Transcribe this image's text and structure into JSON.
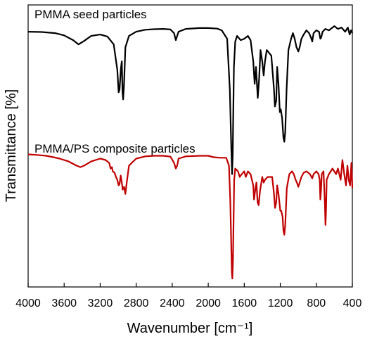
{
  "chart_data": {
    "type": "line",
    "title": "",
    "xlabel": "Wavenumber [cm⁻¹]",
    "ylabel": "Transmittance [%]",
    "xlim": [
      4000,
      400
    ],
    "x_reversed": true,
    "ylim": [
      0,
      1
    ],
    "y_ticks_shown": false,
    "grid": false,
    "legend": "none",
    "x_ticks": [
      4000,
      3600,
      3200,
      2800,
      2400,
      2000,
      1600,
      1200,
      800,
      400
    ],
    "x_tick_labels": [
      "4000",
      "3600",
      "3200",
      "2800",
      "2400",
      "2000",
      "1600",
      "1200",
      "800",
      "400"
    ],
    "series": [
      {
        "name": "PMMA seed particles",
        "color": "#000000",
        "points": [
          [
            4000,
            0.905
          ],
          [
            3850,
            0.904
          ],
          [
            3700,
            0.9
          ],
          [
            3600,
            0.892
          ],
          [
            3500,
            0.875
          ],
          [
            3440,
            0.86
          ],
          [
            3380,
            0.872
          ],
          [
            3300,
            0.89
          ],
          [
            3200,
            0.895
          ],
          [
            3120,
            0.888
          ],
          [
            3050,
            0.86
          ],
          [
            3010,
            0.77
          ],
          [
            2995,
            0.69
          ],
          [
            2985,
            0.7
          ],
          [
            2970,
            0.775
          ],
          [
            2960,
            0.8
          ],
          [
            2952,
            0.69
          ],
          [
            2945,
            0.665
          ],
          [
            2935,
            0.72
          ],
          [
            2920,
            0.85
          ],
          [
            2880,
            0.89
          ],
          [
            2800,
            0.905
          ],
          [
            2700,
            0.912
          ],
          [
            2600,
            0.914
          ],
          [
            2500,
            0.915
          ],
          [
            2420,
            0.913
          ],
          [
            2380,
            0.9
          ],
          [
            2360,
            0.875
          ],
          [
            2345,
            0.89
          ],
          [
            2330,
            0.905
          ],
          [
            2250,
            0.915
          ],
          [
            2100,
            0.918
          ],
          [
            2000,
            0.918
          ],
          [
            1900,
            0.916
          ],
          [
            1850,
            0.91
          ],
          [
            1790,
            0.88
          ],
          [
            1760,
            0.7
          ],
          [
            1745,
            0.5
          ],
          [
            1735,
            0.4
          ],
          [
            1728,
            0.47
          ],
          [
            1715,
            0.78
          ],
          [
            1700,
            0.87
          ],
          [
            1680,
            0.89
          ],
          [
            1640,
            0.875
          ],
          [
            1600,
            0.88
          ],
          [
            1560,
            0.89
          ],
          [
            1530,
            0.875
          ],
          [
            1500,
            0.8
          ],
          [
            1485,
            0.72
          ],
          [
            1470,
            0.78
          ],
          [
            1450,
            0.67
          ],
          [
            1435,
            0.74
          ],
          [
            1420,
            0.84
          ],
          [
            1400,
            0.8
          ],
          [
            1385,
            0.75
          ],
          [
            1370,
            0.8
          ],
          [
            1350,
            0.84
          ],
          [
            1300,
            0.82
          ],
          [
            1270,
            0.7
          ],
          [
            1260,
            0.64
          ],
          [
            1245,
            0.66
          ],
          [
            1235,
            0.78
          ],
          [
            1220,
            0.72
          ],
          [
            1205,
            0.62
          ],
          [
            1195,
            0.63
          ],
          [
            1180,
            0.6
          ],
          [
            1165,
            0.53
          ],
          [
            1155,
            0.515
          ],
          [
            1145,
            0.55
          ],
          [
            1130,
            0.7
          ],
          [
            1110,
            0.84
          ],
          [
            1080,
            0.88
          ],
          [
            1060,
            0.9
          ],
          [
            1040,
            0.88
          ],
          [
            1020,
            0.85
          ],
          [
            1000,
            0.835
          ],
          [
            985,
            0.85
          ],
          [
            965,
            0.88
          ],
          [
            940,
            0.895
          ],
          [
            910,
            0.91
          ],
          [
            880,
            0.9
          ],
          [
            860,
            0.885
          ],
          [
            845,
            0.87
          ],
          [
            830,
            0.9
          ],
          [
            800,
            0.91
          ],
          [
            770,
            0.905
          ],
          [
            755,
            0.88
          ],
          [
            745,
            0.885
          ],
          [
            730,
            0.905
          ],
          [
            700,
            0.915
          ],
          [
            660,
            0.91
          ],
          [
            600,
            0.925
          ],
          [
            560,
            0.915
          ],
          [
            520,
            0.92
          ],
          [
            480,
            0.905
          ],
          [
            450,
            0.92
          ],
          [
            430,
            0.895
          ],
          [
            415,
            0.91
          ],
          [
            400,
            0.9
          ]
        ]
      },
      {
        "name": "PMMA/PS composite particles",
        "color": "#c00000",
        "points": [
          [
            4000,
            0.47
          ],
          [
            3900,
            0.468
          ],
          [
            3800,
            0.465
          ],
          [
            3720,
            0.46
          ],
          [
            3650,
            0.455
          ],
          [
            3550,
            0.445
          ],
          [
            3460,
            0.43
          ],
          [
            3420,
            0.425
          ],
          [
            3380,
            0.43
          ],
          [
            3300,
            0.445
          ],
          [
            3200,
            0.455
          ],
          [
            3140,
            0.45
          ],
          [
            3100,
            0.44
          ],
          [
            3085,
            0.42
          ],
          [
            3070,
            0.425
          ],
          [
            3060,
            0.41
          ],
          [
            3040,
            0.405
          ],
          [
            3025,
            0.39
          ],
          [
            3010,
            0.38
          ],
          [
            2995,
            0.36
          ],
          [
            2985,
            0.365
          ],
          [
            2972,
            0.395
          ],
          [
            2960,
            0.37
          ],
          [
            2950,
            0.345
          ],
          [
            2935,
            0.355
          ],
          [
            2920,
            0.33
          ],
          [
            2905,
            0.37
          ],
          [
            2880,
            0.43
          ],
          [
            2850,
            0.44
          ],
          [
            2800,
            0.455
          ],
          [
            2700,
            0.463
          ],
          [
            2600,
            0.465
          ],
          [
            2500,
            0.465
          ],
          [
            2420,
            0.462
          ],
          [
            2380,
            0.44
          ],
          [
            2360,
            0.42
          ],
          [
            2345,
            0.43
          ],
          [
            2330,
            0.455
          ],
          [
            2250,
            0.463
          ],
          [
            2100,
            0.465
          ],
          [
            2000,
            0.465
          ],
          [
            1940,
            0.46
          ],
          [
            1870,
            0.458
          ],
          [
            1800,
            0.458
          ],
          [
            1770,
            0.43
          ],
          [
            1755,
            0.3
          ],
          [
            1745,
            0.15
          ],
          [
            1738,
            0.05
          ],
          [
            1732,
            0.03
          ],
          [
            1725,
            0.1
          ],
          [
            1712,
            0.38
          ],
          [
            1700,
            0.42
          ],
          [
            1670,
            0.41
          ],
          [
            1650,
            0.39
          ],
          [
            1640,
            0.395
          ],
          [
            1600,
            0.41
          ],
          [
            1583,
            0.39
          ],
          [
            1560,
            0.41
          ],
          [
            1530,
            0.4
          ],
          [
            1500,
            0.36
          ],
          [
            1492,
            0.31
          ],
          [
            1480,
            0.34
          ],
          [
            1465,
            0.37
          ],
          [
            1452,
            0.3
          ],
          [
            1440,
            0.29
          ],
          [
            1425,
            0.34
          ],
          [
            1400,
            0.39
          ],
          [
            1385,
            0.37
          ],
          [
            1370,
            0.38
          ],
          [
            1340,
            0.39
          ],
          [
            1290,
            0.39
          ],
          [
            1270,
            0.33
          ],
          [
            1258,
            0.28
          ],
          [
            1245,
            0.3
          ],
          [
            1235,
            0.36
          ],
          [
            1220,
            0.33
          ],
          [
            1200,
            0.27
          ],
          [
            1190,
            0.27
          ],
          [
            1175,
            0.25
          ],
          [
            1165,
            0.2
          ],
          [
            1155,
            0.185
          ],
          [
            1145,
            0.22
          ],
          [
            1128,
            0.35
          ],
          [
            1100,
            0.4
          ],
          [
            1070,
            0.41
          ],
          [
            1050,
            0.4
          ],
          [
            1030,
            0.38
          ],
          [
            1015,
            0.37
          ],
          [
            1000,
            0.355
          ],
          [
            985,
            0.37
          ],
          [
            965,
            0.39
          ],
          [
            940,
            0.405
          ],
          [
            910,
            0.41
          ],
          [
            870,
            0.4
          ],
          [
            845,
            0.385
          ],
          [
            830,
            0.4
          ],
          [
            800,
            0.41
          ],
          [
            775,
            0.4
          ],
          [
            762,
            0.38
          ],
          [
            755,
            0.31
          ],
          [
            748,
            0.34
          ],
          [
            740,
            0.4
          ],
          [
            720,
            0.41
          ],
          [
            705,
            0.3
          ],
          [
            698,
            0.22
          ],
          [
            692,
            0.27
          ],
          [
            685,
            0.38
          ],
          [
            660,
            0.4
          ],
          [
            620,
            0.42
          ],
          [
            580,
            0.4
          ],
          [
            560,
            0.42
          ],
          [
            530,
            0.38
          ],
          [
            510,
            0.45
          ],
          [
            490,
            0.4
          ],
          [
            470,
            0.36
          ],
          [
            455,
            0.43
          ],
          [
            440,
            0.38
          ],
          [
            425,
            0.36
          ],
          [
            410,
            0.44
          ],
          [
            400,
            0.35
          ]
        ]
      }
    ]
  }
}
